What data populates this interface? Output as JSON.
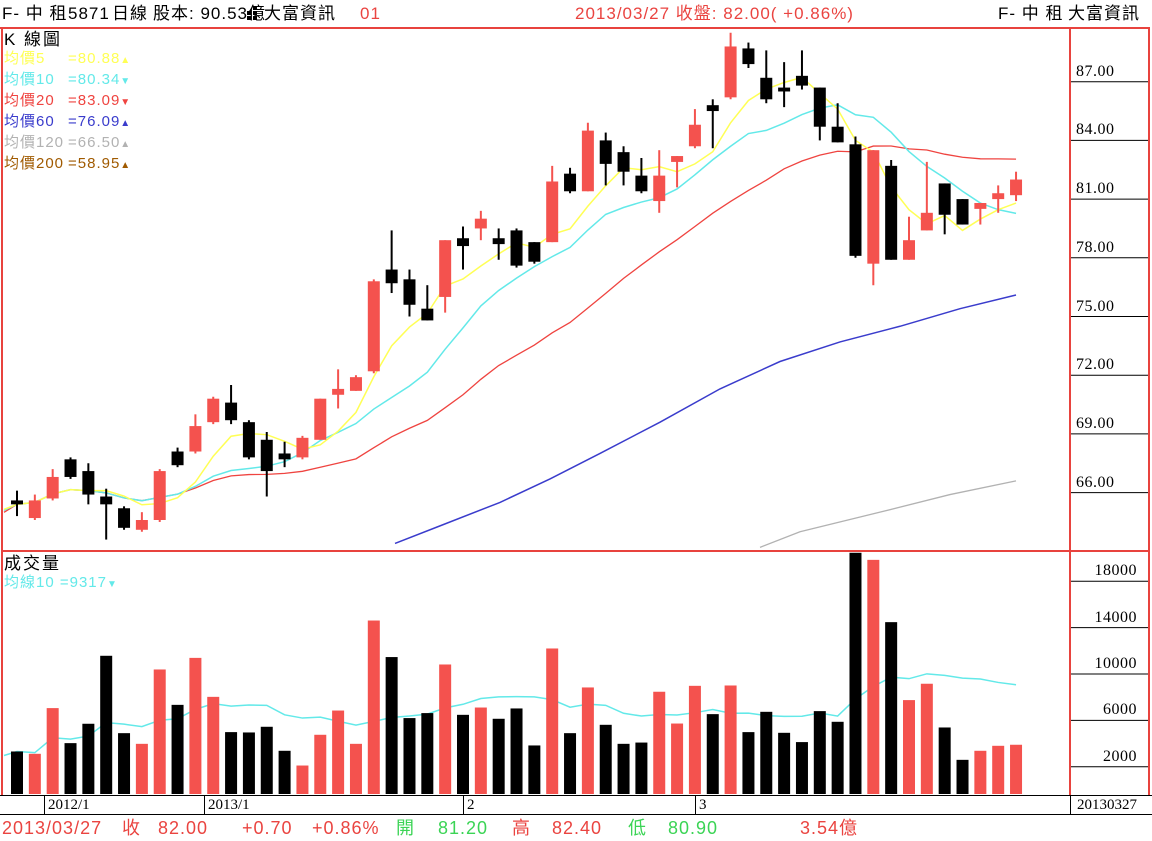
{
  "header": {
    "stock_name": "F- 中 租",
    "stock_code": "5871",
    "period": "日線",
    "capital": "股本: 90.53億",
    "vendor": "大富資訊",
    "page_number": "01",
    "quote": "2013/03/27 收盤:  82.00( +0.86%)",
    "right_stock": "F- 中 租",
    "right_vendor": "大富資訊"
  },
  "price_pane": {
    "title": "K 線圖",
    "legend": [
      {
        "label": "均價5",
        "value": "=80.88",
        "trend": "▲",
        "color_key": "ma5_yellow"
      },
      {
        "label": "均價10",
        "value": "=80.34",
        "trend": "▼",
        "color_key": "ma10_cyan"
      },
      {
        "label": "均價20",
        "value": "=83.09",
        "trend": "▼",
        "color_key": "ma20_red"
      },
      {
        "label": "均價60",
        "value": "=76.09",
        "trend": "▲",
        "color_key": "ma60_blue"
      },
      {
        "label": "均價120",
        "value": "=66.50",
        "trend": "▲",
        "color_key": "ma120_gray"
      },
      {
        "label": "均價200",
        "value": "=58.95",
        "trend": "▲",
        "color_key": "ma200_brown"
      }
    ],
    "axis_ticks": [
      87,
      84,
      81,
      78,
      75,
      72,
      69,
      66
    ]
  },
  "volume_pane": {
    "title": "成交量",
    "legend": {
      "label": "均線10",
      "value": "=9317",
      "trend": "▼",
      "color_key": "vol_ma_cyan"
    },
    "axis_ticks": [
      18000,
      14000,
      10000,
      6000,
      2000
    ]
  },
  "x_axis": {
    "month_ticks": [
      {
        "index": 1.5,
        "label": "2012/1"
      },
      {
        "index": 10.5,
        "label": "2013/1"
      },
      {
        "index": 25,
        "label": "2"
      },
      {
        "index": 38,
        "label": "3"
      }
    ],
    "right_date_label": "20130327"
  },
  "status_bar": {
    "items": [
      {
        "text": "2013/03/27",
        "color": "red"
      },
      {
        "text": "收",
        "color": "red"
      },
      {
        "text": "82.00",
        "color": "red"
      },
      {
        "text": "+0.70",
        "color": "red"
      },
      {
        "text": "+0.86%",
        "color": "red"
      },
      {
        "text": "開",
        "color": "green"
      },
      {
        "text": "81.20",
        "color": "green"
      },
      {
        "text": "高",
        "color": "red"
      },
      {
        "text": "82.40",
        "color": "red"
      },
      {
        "text": "低",
        "color": "green"
      },
      {
        "text": "80.90",
        "color": "green"
      },
      {
        "text": "3.54億",
        "color": "red"
      }
    ]
  },
  "colors": {
    "up_red": "#f4524e",
    "down_black": "#000000",
    "ma5_yellow": "#ffff55",
    "ma10_cyan": "#63e9e9",
    "ma20_red": "#ef4440",
    "ma60_blue": "#3a3ccc",
    "ma120_gray": "#b2b2b2",
    "ma200_brown": "#a05a00",
    "vol_ma_cyan": "#63e9e9",
    "text_red": "#ea4440",
    "text_green": "#3bd455",
    "border_red": "#e8433e"
  },
  "chart_data": {
    "type": "candlestick+volume",
    "note": "daily K-line, red=up black=down, candles ordered oldest to newest; fields: open, high, low, close, volume, up",
    "price_axis_range": [
      63.2,
      89.6
    ],
    "volume_axis_range": [
      0,
      20500
    ],
    "candles": [
      [
        65.6,
        66.1,
        64.8,
        65.4,
        3320,
        0
      ],
      [
        64.7,
        65.9,
        64.6,
        65.6,
        3120,
        1
      ],
      [
        65.7,
        67.2,
        65.6,
        66.8,
        7060,
        1
      ],
      [
        67.7,
        67.8,
        66.7,
        66.8,
        4040,
        0
      ],
      [
        67.1,
        67.5,
        65.4,
        65.9,
        5710,
        0
      ],
      [
        65.8,
        66.2,
        63.6,
        65.4,
        11570,
        0
      ],
      [
        65.2,
        65.3,
        64.1,
        64.2,
        4900,
        0
      ],
      [
        64.1,
        65.0,
        64.0,
        64.6,
        3980,
        1
      ],
      [
        64.6,
        67.2,
        64.5,
        67.1,
        10390,
        1
      ],
      [
        68.1,
        68.3,
        67.3,
        67.4,
        7340,
        0
      ],
      [
        68.1,
        70.0,
        68.0,
        69.4,
        11390,
        1
      ],
      [
        69.6,
        70.9,
        69.5,
        70.8,
        8030,
        1
      ],
      [
        70.6,
        71.5,
        69.5,
        69.7,
        4990,
        0
      ],
      [
        69.6,
        69.7,
        67.7,
        67.8,
        4960,
        0
      ],
      [
        68.7,
        69.1,
        65.8,
        67.1,
        5450,
        0
      ],
      [
        68.0,
        68.6,
        67.3,
        67.7,
        3380,
        0
      ],
      [
        67.8,
        68.9,
        67.7,
        68.8,
        2110,
        1
      ],
      [
        68.7,
        70.8,
        68.7,
        70.8,
        4760,
        1
      ],
      [
        71.0,
        72.3,
        70.3,
        71.3,
        6850,
        1
      ],
      [
        71.2,
        72.0,
        71.2,
        71.9,
        3980,
        1
      ],
      [
        72.2,
        76.9,
        72.1,
        76.8,
        14610,
        1
      ],
      [
        77.4,
        79.4,
        76.2,
        76.7,
        11460,
        0
      ],
      [
        76.9,
        77.4,
        75.0,
        75.6,
        6200,
        0
      ],
      [
        75.4,
        76.6,
        74.8,
        74.8,
        6630,
        0
      ],
      [
        76.0,
        78.9,
        75.2,
        78.9,
        10820,
        1
      ],
      [
        79.0,
        79.6,
        77.4,
        78.6,
        6480,
        0
      ],
      [
        79.5,
        80.4,
        78.9,
        80.0,
        7110,
        1
      ],
      [
        79.0,
        79.5,
        77.9,
        78.7,
        6140,
        0
      ],
      [
        79.4,
        79.5,
        77.5,
        77.6,
        7030,
        0
      ],
      [
        78.8,
        78.8,
        77.7,
        77.8,
        3840,
        0
      ],
      [
        78.8,
        82.7,
        78.8,
        81.9,
        12200,
        1
      ],
      [
        82.3,
        82.6,
        81.3,
        81.4,
        4900,
        0
      ],
      [
        81.4,
        84.9,
        81.4,
        84.5,
        8840,
        1
      ],
      [
        84.0,
        84.4,
        81.7,
        82.8,
        5620,
        0
      ],
      [
        83.4,
        83.7,
        81.7,
        82.4,
        3980,
        0
      ],
      [
        82.2,
        83.1,
        81.3,
        81.4,
        4090,
        0
      ],
      [
        80.9,
        83.5,
        80.3,
        82.2,
        8470,
        1
      ],
      [
        82.9,
        83.2,
        81.6,
        83.2,
        5730,
        1
      ],
      [
        83.7,
        85.6,
        83.6,
        84.8,
        8980,
        1
      ],
      [
        85.8,
        86.1,
        83.6,
        85.5,
        6540,
        0
      ],
      [
        86.2,
        89.5,
        86.1,
        88.8,
        9010,
        1
      ],
      [
        88.7,
        89.0,
        87.7,
        87.9,
        4990,
        0
      ],
      [
        87.2,
        88.6,
        85.9,
        86.1,
        6740,
        0
      ],
      [
        86.7,
        88.0,
        85.7,
        86.5,
        4930,
        0
      ],
      [
        87.3,
        88.6,
        86.6,
        86.8,
        4130,
        0
      ],
      [
        86.7,
        86.7,
        84.0,
        84.7,
        6800,
        0
      ],
      [
        84.7,
        85.9,
        83.9,
        83.9,
        5880,
        0
      ],
      [
        83.8,
        84.2,
        78.0,
        78.1,
        20450,
        0
      ],
      [
        77.7,
        83.5,
        76.6,
        83.5,
        19840,
        1
      ],
      [
        82.7,
        83.0,
        77.9,
        77.9,
        14470,
        0
      ],
      [
        77.9,
        80.1,
        77.9,
        78.9,
        7750,
        1
      ],
      [
        79.4,
        82.9,
        79.4,
        80.3,
        9160,
        1
      ],
      [
        81.8,
        81.8,
        79.2,
        80.2,
        5390,
        0
      ],
      [
        81.0,
        81.0,
        79.7,
        79.7,
        2600,
        0
      ],
      [
        80.5,
        80.8,
        79.7,
        80.8,
        3380,
        1
      ],
      [
        81.0,
        81.7,
        80.3,
        81.3,
        3810,
        1
      ],
      [
        81.2,
        82.4,
        80.9,
        82.0,
        3900,
        1
      ]
    ],
    "ma60_sampled_points": [
      [
        395,
        63.4
      ],
      [
        440,
        64.3
      ],
      [
        500,
        65.5
      ],
      [
        550,
        66.7
      ],
      [
        600,
        68.0
      ],
      [
        660,
        69.6
      ],
      [
        720,
        71.3
      ],
      [
        780,
        72.7
      ],
      [
        840,
        73.7
      ],
      [
        900,
        74.5
      ],
      [
        960,
        75.4
      ],
      [
        1016,
        76.1
      ]
    ],
    "ma120_sampled_points": [
      [
        760,
        63.2
      ],
      [
        800,
        64.0
      ],
      [
        880,
        65.0
      ],
      [
        950,
        65.9
      ],
      [
        1016,
        66.6
      ]
    ]
  }
}
